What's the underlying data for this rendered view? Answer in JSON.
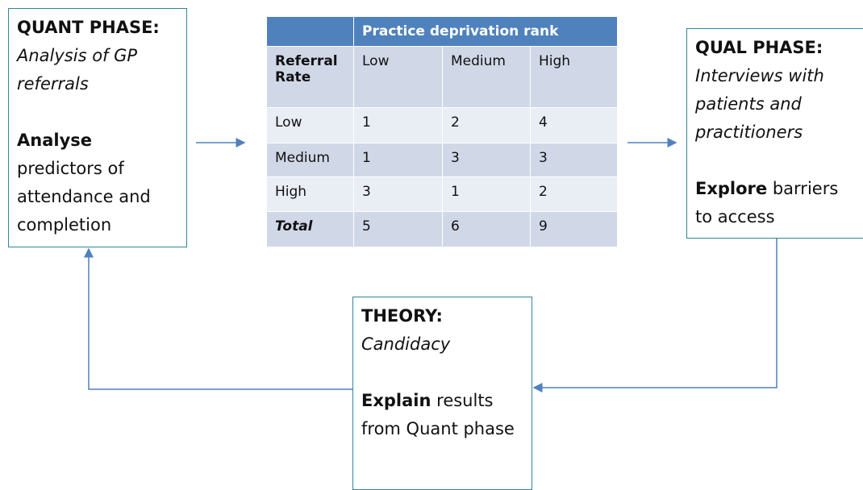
{
  "quant": {
    "title": "QUANT PHASE:",
    "subtitle": "Analysis of GP referrals",
    "action": "Analyse",
    "detail": "predictors of attendance and completion"
  },
  "table": {
    "header": "Practice deprivation rank",
    "corner": "Referral Rate",
    "columns": [
      "Low",
      "Medium",
      "High"
    ],
    "rows": [
      [
        "Low",
        1,
        2,
        4
      ],
      [
        "Medium",
        1,
        3,
        3
      ],
      [
        "High",
        3,
        1,
        2
      ],
      [
        "Total",
        5,
        6,
        9
      ]
    ]
  },
  "qual": {
    "title": "QUAL PHASE:",
    "subtitle": "Interviews with patients and practitioners",
    "action": "Explore",
    "detail": "barriers to access"
  },
  "theory": {
    "title": "THEORY:",
    "subtitle": "Candidacy",
    "action": "Explain",
    "detail": "results from Quant phase"
  }
}
